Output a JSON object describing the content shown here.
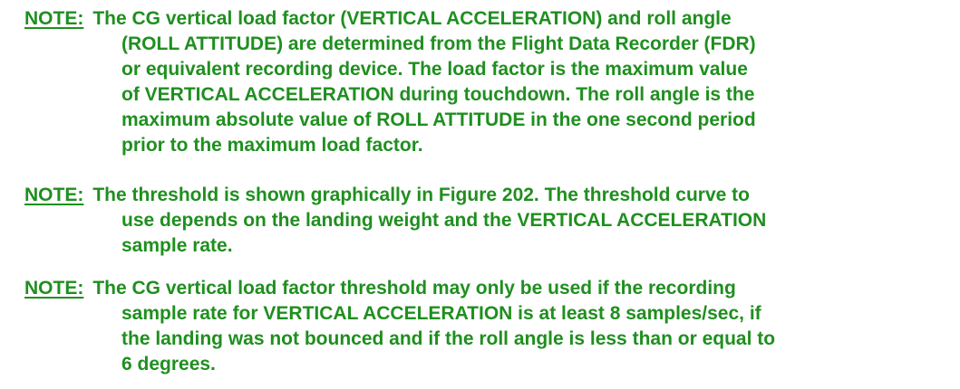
{
  "notes": [
    {
      "label": "NOTE:",
      "lines": [
        "The CG vertical load factor (VERTICAL ACCELERATION) and roll angle",
        "(ROLL ATTITUDE) are determined from the Flight Data Recorder (FDR)",
        "or equivalent recording device. The load factor is the maximum value",
        "of VERTICAL ACCELERATION during touchdown. The roll angle is the",
        "maximum absolute value of ROLL ATTITUDE in the one second period",
        "prior to the maximum load factor."
      ]
    },
    {
      "label": "NOTE:",
      "lines": [
        "The threshold is shown graphically in Figure 202. The threshold curve to",
        "use depends on the landing weight and the VERTICAL ACCELERATION",
        "sample rate."
      ]
    },
    {
      "label": "NOTE:",
      "lines": [
        "The CG vertical load factor threshold may only be used if the recording",
        "sample rate for VERTICAL ACCELERATION is at least 8 samples/sec, if",
        "the landing was not bounced and if the roll angle is less than or equal to",
        "6 degrees."
      ]
    }
  ],
  "colors": {
    "text": "#1f8f1f",
    "background": "#ffffff"
  }
}
